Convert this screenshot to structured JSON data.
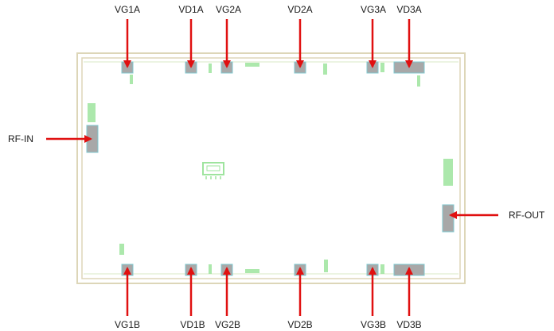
{
  "top_pads": [
    "VG1A",
    "VD1A",
    "VG2A",
    "VD2A",
    "VG3A",
    "VD3A"
  ],
  "bottom_pads": [
    "VG1B",
    "VD1B",
    "VG2B",
    "VD2B",
    "VG3B",
    "VD3B"
  ],
  "side_ports": {
    "input": "RF-IN",
    "output": "RF-OUT"
  },
  "colors": {
    "arrow": "#e01010",
    "frame": "#ddd6b8",
    "pad": "#a8a8a8",
    "silkscreen": "#7fdc7f"
  }
}
